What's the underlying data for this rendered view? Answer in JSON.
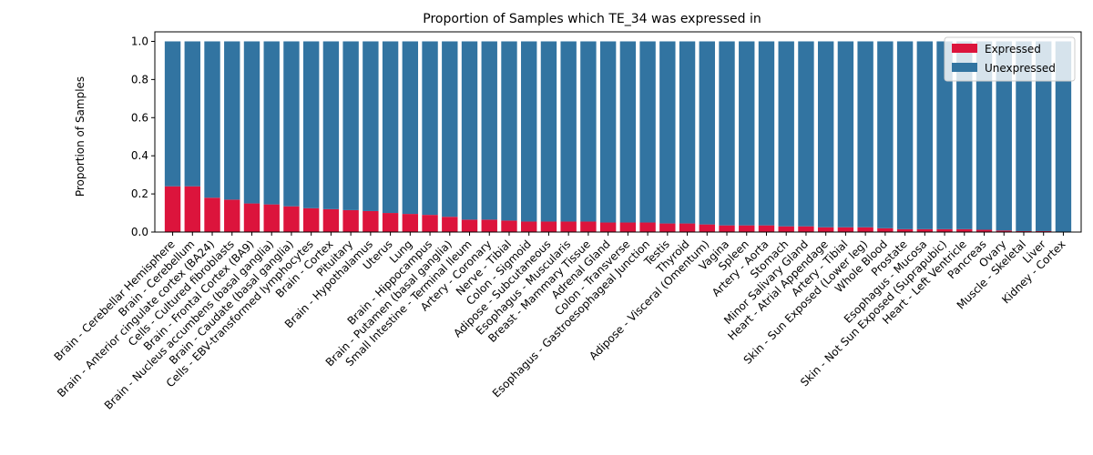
{
  "chart_data": {
    "type": "bar",
    "stacked": true,
    "title": "Proportion of Samples which TE_34 was expressed in",
    "xlabel": "",
    "ylabel": "Proportion of Samples",
    "ylim": [
      0,
      1.05
    ],
    "yticks": [
      "0.0",
      "0.2",
      "0.4",
      "0.6",
      "0.8",
      "1.0"
    ],
    "ytick_values": [
      0,
      0.2,
      0.4,
      0.6,
      0.8,
      1.0
    ],
    "grid": false,
    "legend_position": "top-right",
    "categories": [
      "Brain - Cerebellar Hemisphere",
      "Brain - Cerebellum",
      "Brain - Anterior cingulate cortex (BA24)",
      "Cells - Cultured fibroblasts",
      "Brain - Frontal Cortex (BA9)",
      "Brain - Nucleus accumbens (basal ganglia)",
      "Brain - Caudate (basal ganglia)",
      "Cells - EBV-transformed lymphocytes",
      "Brain - Cortex",
      "Pituitary",
      "Brain - Hypothalamus",
      "Uterus",
      "Lung",
      "Brain - Hippocampus",
      "Brain - Putamen (basal ganglia)",
      "Small Intestine - Terminal Ileum",
      "Artery - Coronary",
      "Nerve - Tibial",
      "Colon - Sigmoid",
      "Adipose - Subcutaneous",
      "Esophagus - Muscularis",
      "Breast - Mammary Tissue",
      "Adrenal Gland",
      "Colon - Transverse",
      "Esophagus - Gastroesophageal Junction",
      "Testis",
      "Thyroid",
      "Adipose - Visceral (Omentum)",
      "Vagina",
      "Spleen",
      "Artery - Aorta",
      "Stomach",
      "Minor Salivary Gland",
      "Heart - Atrial Appendage",
      "Artery - Tibial",
      "Skin - Sun Exposed (Lower leg)",
      "Whole Blood",
      "Prostate",
      "Esophagus - Mucosa",
      "Skin - Not Sun Exposed (Suprapubic)",
      "Heart - Left Ventricle",
      "Pancreas",
      "Ovary",
      "Muscle - Skeletal",
      "Liver",
      "Kidney - Cortex"
    ],
    "series": [
      {
        "name": "Expressed",
        "color": "#dc143c",
        "values": [
          0.24,
          0.24,
          0.18,
          0.17,
          0.15,
          0.145,
          0.135,
          0.125,
          0.12,
          0.115,
          0.11,
          0.1,
          0.095,
          0.09,
          0.08,
          0.065,
          0.065,
          0.06,
          0.055,
          0.055,
          0.055,
          0.055,
          0.05,
          0.05,
          0.05,
          0.045,
          0.045,
          0.04,
          0.035,
          0.035,
          0.035,
          0.03,
          0.03,
          0.025,
          0.025,
          0.025,
          0.02,
          0.015,
          0.015,
          0.015,
          0.015,
          0.012,
          0.008,
          0.005,
          0.005,
          0.0
        ]
      },
      {
        "name": "Unexpressed",
        "color": "#3274a1",
        "values": [
          0.76,
          0.76,
          0.82,
          0.83,
          0.85,
          0.855,
          0.865,
          0.875,
          0.88,
          0.885,
          0.89,
          0.9,
          0.905,
          0.91,
          0.92,
          0.935,
          0.935,
          0.94,
          0.945,
          0.945,
          0.945,
          0.945,
          0.95,
          0.95,
          0.95,
          0.955,
          0.955,
          0.96,
          0.965,
          0.965,
          0.965,
          0.97,
          0.97,
          0.975,
          0.975,
          0.975,
          0.98,
          0.985,
          0.985,
          0.985,
          0.985,
          0.988,
          0.992,
          0.995,
          0.995,
          1.0
        ]
      }
    ]
  }
}
